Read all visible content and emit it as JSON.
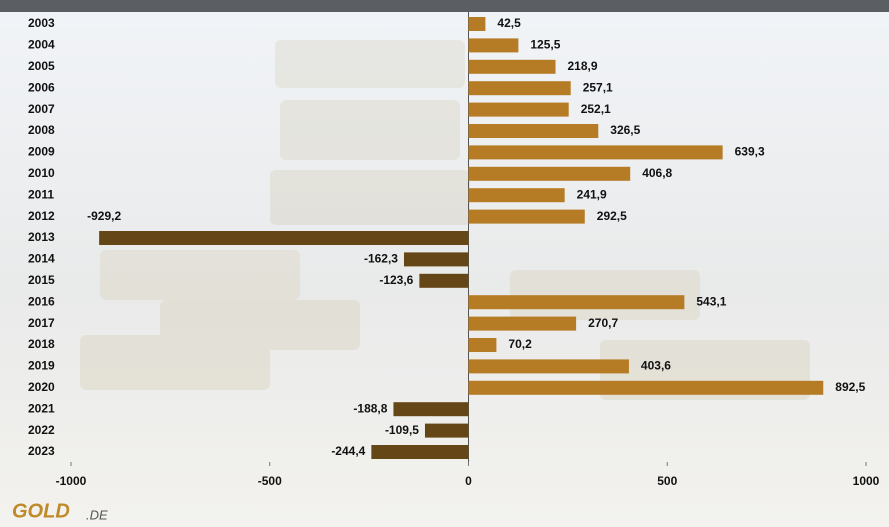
{
  "chart_data": {
    "type": "bar",
    "orientation": "horizontal",
    "categories": [
      "2003",
      "2004",
      "2005",
      "2006",
      "2007",
      "2008",
      "2009",
      "2010",
      "2011",
      "2012",
      "2013",
      "2014",
      "2015",
      "2016",
      "2017",
      "2018",
      "2019",
      "2020",
      "2021",
      "2022",
      "2023"
    ],
    "values": [
      42.5,
      125.5,
      218.9,
      257.1,
      252.1,
      326.5,
      639.3,
      406.8,
      241.9,
      292.5,
      -929.2,
      -162.3,
      -123.6,
      543.1,
      270.7,
      70.2,
      403.6,
      892.5,
      -188.8,
      -109.5,
      -244.4
    ],
    "value_labels": [
      "42,5",
      "125,5",
      "218,9",
      "257,1",
      "252,1",
      "326,5",
      "639,3",
      "406,8",
      "241,9",
      "292,5",
      "-929,2",
      "-162,3",
      "-123,6",
      "543,1",
      "270,7",
      "70,2",
      "403,6",
      "892,5",
      "-188,8",
      "-109,5",
      "-244,4"
    ],
    "positive_color": "#b67c25",
    "negative_color": "#654616",
    "xlim": [
      -1000,
      1000
    ],
    "xticks": [
      -1000,
      -500,
      0,
      500,
      1000
    ],
    "logo": {
      "main": "GOLD",
      "suffix": ".DE"
    }
  }
}
